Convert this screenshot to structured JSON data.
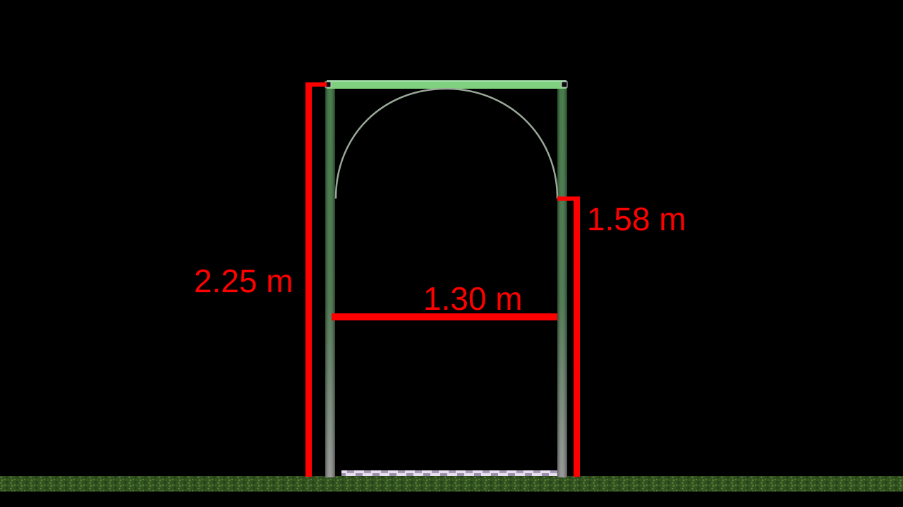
{
  "colors": {
    "background": "#000000",
    "dimension": "#ff0000",
    "post_top": "#2e6b33",
    "post_bottom": "#8a8a8a",
    "top_bar": "#7fd17f",
    "arch": "#9aa89a",
    "ground": "#3a5a2a",
    "base_plate": "#d8d0e0"
  },
  "dimensions": {
    "total_height": "2.25 m",
    "upright_height": "1.58 m",
    "width": "1.30 m"
  }
}
